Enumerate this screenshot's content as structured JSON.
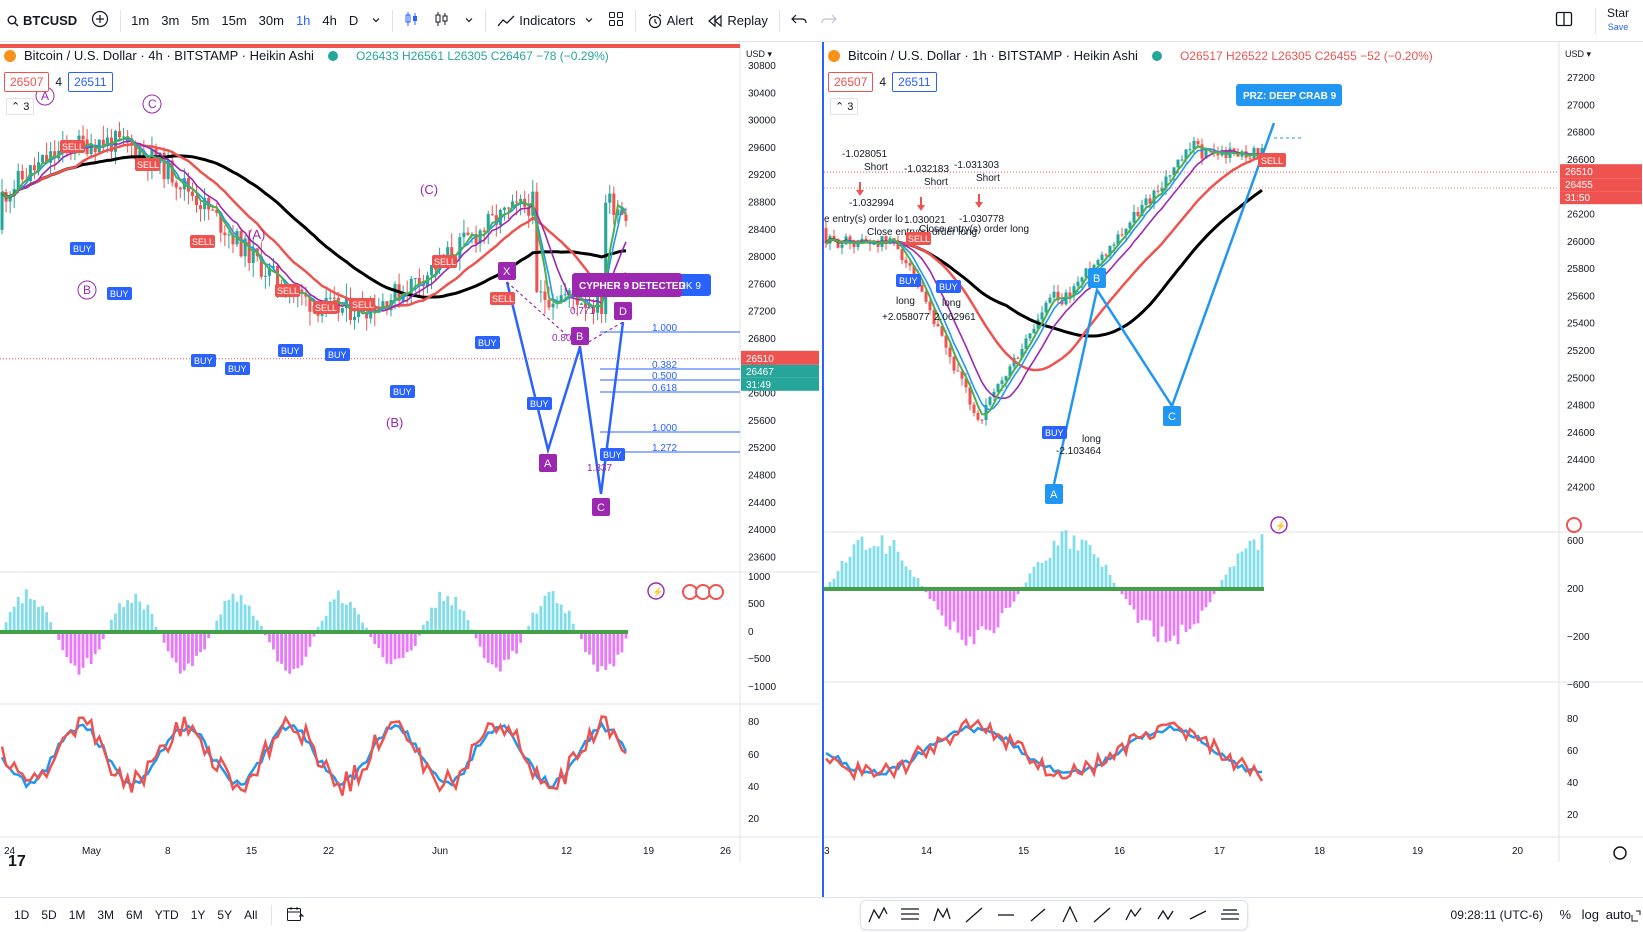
{
  "toolbar": {
    "symbol": "BTCUSD",
    "intervals": [
      "1m",
      "3m",
      "5m",
      "15m",
      "30m",
      "1h",
      "4h",
      "D"
    ],
    "active_interval": "1h",
    "indicators_label": "Indicators",
    "alert_label": "Alert",
    "replay_label": "Replay",
    "star_label": "Star",
    "save_label": "Save"
  },
  "left_chart": {
    "title": "Bitcoin / U.S. Dollar · 4h · BITSTAMP · Heikin Ashi",
    "ohlc": "O26433 H26561 L26305 C26467 −78 (−0.29%)",
    "bid": "26507",
    "spread": "4",
    "ask": "26511",
    "collapse_count": "3",
    "currency": "USD",
    "price_ticks": [
      "30800",
      "30400",
      "30000",
      "29600",
      "29200",
      "28800",
      "28400",
      "28000",
      "27600",
      "27200",
      "26800",
      "26400",
      "26000",
      "25600",
      "25200",
      "24800",
      "24400",
      "24000",
      "23600"
    ],
    "last_price": "26510",
    "last_price_2": "26467",
    "countdown": "31:49",
    "osc_ticks": [
      "1000",
      "500",
      "0",
      "−500",
      "−1000"
    ],
    "rsi_ticks": [
      "80",
      "60",
      "40",
      "20"
    ],
    "x_labels": [
      "24",
      "May",
      "8",
      "15",
      "22",
      "Jun",
      "12",
      "19",
      "26"
    ],
    "pattern_label": "CYPHER 9 DETECTED",
    "shark_label": "ARK 9",
    "fib_labels": [
      "1.000",
      "0.382",
      "0.500",
      "0.618",
      "1.000",
      "1.272"
    ],
    "ratio_labels": [
      "0.771",
      "0.807",
      "1.337"
    ],
    "points": [
      "X",
      "A",
      "B",
      "C",
      "D"
    ],
    "wave_labels": [
      "A",
      "C",
      "(C)",
      "(A)",
      "B",
      "(B)"
    ]
  },
  "right_chart": {
    "title": "Bitcoin / U.S. Dollar · 1h · BITSTAMP · Heikin Ashi",
    "ohlc": "O26517 H26522 L26305 C26455 −52 (−0.20%)",
    "bid": "26507",
    "spread": "4",
    "ask": "26511",
    "collapse_count": "3",
    "currency": "USD",
    "price_ticks": [
      "27200",
      "27000",
      "26800",
      "26600",
      "26400",
      "26200",
      "26000",
      "25800",
      "25600",
      "25400",
      "25200",
      "25000",
      "24800",
      "24600",
      "24400",
      "24200"
    ],
    "last_price": "26510",
    "last_price_2": "26455",
    "countdown": "31:50",
    "osc_ticks": [
      "600",
      "200",
      "−200",
      "−600"
    ],
    "rsi_ticks": [
      "80",
      "60",
      "40",
      "20"
    ],
    "x_labels": [
      "3",
      "14",
      "15",
      "16",
      "17",
      "18",
      "19",
      "20"
    ],
    "prz_label": "PRZ: DEEP CRAB 9",
    "sell_label": "SELL",
    "trade_notes": [
      "-1.028051",
      "Short",
      "-1.032183",
      "Short",
      "-1.031303",
      "Short",
      "-1.032994",
      "1.030021",
      "-1.030778",
      "long",
      "+2.058077",
      "long",
      "2.062961",
      "long",
      "-2.103464"
    ],
    "entry_notes": [
      "e entry(s) order lo",
      "Close entry(s) order long",
      "Close entry(s) order long"
    ],
    "points": [
      "A",
      "B",
      "C"
    ]
  },
  "bottombar": {
    "ranges": [
      "1D",
      "5D",
      "1M",
      "3M",
      "6M",
      "YTD",
      "1Y",
      "5Y",
      "All"
    ],
    "time": "09:28:11 (UTC-6)",
    "percent": "%",
    "log": "log",
    "auto": "auto"
  },
  "colors": {
    "up": "#26a69a",
    "down": "#ef5350",
    "pattern": "#9c27b0",
    "blue": "#2962ff",
    "bid": "#ef5350",
    "ask": "#2962ff"
  }
}
